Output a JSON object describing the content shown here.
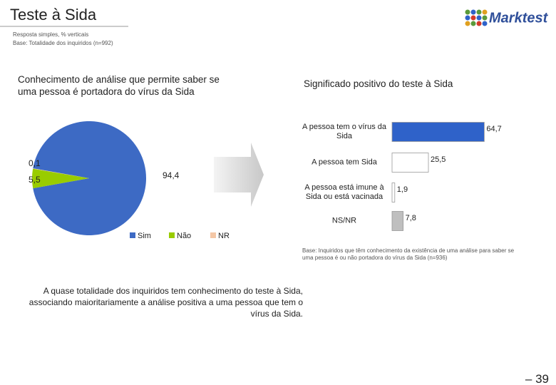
{
  "title": "Teste à Sida",
  "subtitle_lines": [
    "Resposta simples, % verticais",
    "Base: Totalidade dos inquiridos (n=992)"
  ],
  "logo": "Marktest",
  "chart_data": [
    {
      "type": "pie",
      "title": "Conhecimento de análise que permite saber se uma pessoa é portadora do vírus da Sida",
      "categories": [
        "Sim",
        "Não",
        "NR"
      ],
      "values": [
        94.4,
        5.5,
        0.1
      ],
      "value_labels": [
        "94,4",
        "5,5",
        "0,1"
      ],
      "colors": [
        "#3d6ac4",
        "#99cc00",
        "#f4c7a6"
      ],
      "legend": "bottom"
    },
    {
      "type": "hbar",
      "title": "Significado positivo do teste à Sida",
      "categories": [
        "A pessoa tem o vírus da Sida",
        "A pessoa tem Sida",
        "A pessoa está imune à Sida ou está vacinada",
        "NS/NR"
      ],
      "values": [
        64.7,
        25.5,
        1.9,
        7.8
      ],
      "value_labels": [
        "64,7",
        "25,5",
        "1,9",
        "7,8"
      ],
      "colors": [
        "#2f62c9",
        "#ffffff",
        "#ffffff",
        "#bfbfbf"
      ]
    }
  ],
  "note": "Base: Inquiridos que têm conhecimento da existência de uma análise para saber se uma pessoa é ou não portadora do vírus da Sida (n=936)",
  "conclusion": "A quase totalidade dos inquiridos tem conhecimento do teste à Sida, associando maioritariamente a análise positiva a uma pessoa que tem o vírus da Sida.",
  "page_number": "– 39"
}
